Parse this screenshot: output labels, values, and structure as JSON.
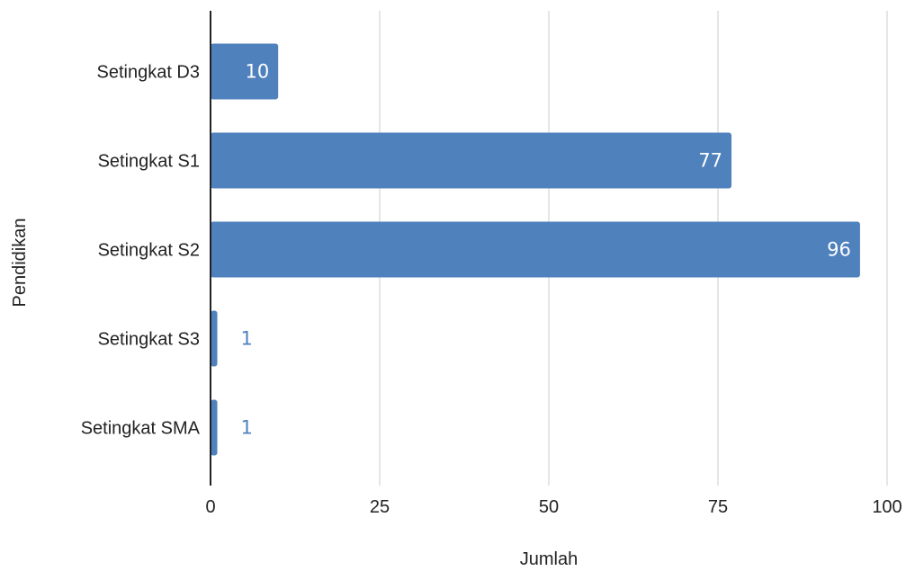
{
  "chart_data": {
    "type": "bar",
    "orientation": "horizontal",
    "categories": [
      "Setingkat D3",
      "Setingkat S1",
      "Setingkat S2",
      "Setingkat S3",
      "Setingkat SMA"
    ],
    "values": [
      10,
      77,
      96,
      1,
      1
    ],
    "value_labels": [
      "10",
      "77",
      "96",
      "1",
      "1"
    ],
    "xlabel": "Jumlah",
    "ylabel": "Pendidikan",
    "xlim": [
      0,
      100
    ],
    "xticks": [
      "0",
      "25",
      "50",
      "75",
      "100"
    ],
    "grid": "vertical",
    "legend": "none",
    "colors": {
      "bar": "#4f81bd",
      "label_inside": "#ffffff",
      "label_outside": "#4f81bd",
      "grid": "#cccccc",
      "axis": "#222222"
    }
  }
}
